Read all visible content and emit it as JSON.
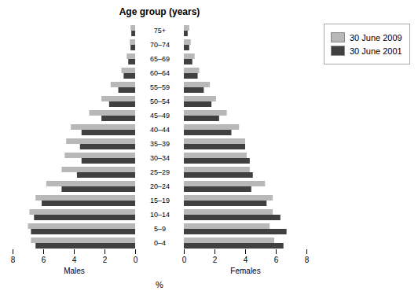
{
  "chart_data": [
    {
      "type": "bar",
      "orientation": "horizontal",
      "title": "Age group (years)",
      "xlabel": "Males",
      "xlim": [
        8,
        0
      ],
      "xticks": [
        0,
        2,
        4,
        6,
        8
      ],
      "annotations": [
        {
          "text": "%"
        }
      ],
      "categories": [
        "0–4",
        "5–9",
        "10–14",
        "15–19",
        "20–24",
        "25–29",
        "30–34",
        "35–39",
        "40–44",
        "45–49",
        "50–54",
        "55–59",
        "60–64",
        "65–69",
        "70–74",
        "75+"
      ],
      "series": [
        {
          "name": "30 June 2009",
          "color": "#b8b8b8",
          "values": [
            6.8,
            7.0,
            6.9,
            6.5,
            5.8,
            4.8,
            4.6,
            4.5,
            4.2,
            3.0,
            2.2,
            1.6,
            0.9,
            0.55,
            0.35,
            0.3
          ]
        },
        {
          "name": "30 June 2001",
          "color": "#404040",
          "values": [
            6.5,
            6.8,
            6.6,
            6.1,
            4.8,
            3.8,
            3.5,
            3.6,
            3.5,
            2.2,
            1.7,
            1.1,
            0.75,
            0.45,
            0.3,
            0.25
          ]
        }
      ]
    },
    {
      "type": "bar",
      "orientation": "horizontal",
      "xlabel": "Females",
      "xlim": [
        0,
        8
      ],
      "xticks": [
        0,
        2,
        4,
        6,
        8
      ],
      "legend": "upper right",
      "categories": [
        "0–4",
        "5–9",
        "10–14",
        "15–19",
        "20–24",
        "25–29",
        "30–34",
        "35–39",
        "40–44",
        "45–49",
        "50–54",
        "55–59",
        "60–64",
        "65–69",
        "70–74",
        "75+"
      ],
      "series": [
        {
          "name": "30 June 2009",
          "color": "#b8b8b8",
          "values": [
            5.9,
            5.6,
            5.8,
            5.8,
            5.3,
            4.3,
            4.1,
            4.0,
            3.6,
            2.8,
            2.1,
            1.7,
            1.0,
            0.7,
            0.45,
            0.35
          ]
        },
        {
          "name": "30 June 2001",
          "color": "#404040",
          "values": [
            6.5,
            6.7,
            6.3,
            5.4,
            4.4,
            4.5,
            4.3,
            4.0,
            3.1,
            2.3,
            1.8,
            1.3,
            0.9,
            0.55,
            0.35,
            0.25
          ]
        }
      ]
    }
  ]
}
